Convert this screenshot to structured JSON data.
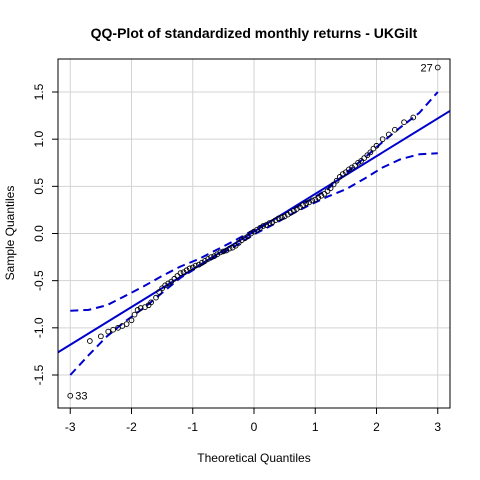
{
  "chart_data": {
    "type": "scatter",
    "title": "QQ-Plot of standardized monthly returns - UKGilt",
    "xlabel": "Theoretical Quantiles",
    "ylabel": "Sample Quantiles",
    "xlim": [
      -3.2,
      3.2
    ],
    "ylim": [
      -1.85,
      1.85
    ],
    "xticks": [
      -3,
      -2,
      -1,
      0,
      1,
      2,
      3
    ],
    "yticks": [
      -1.5,
      -1.0,
      -0.5,
      0.0,
      0.5,
      1.0,
      1.5
    ],
    "xtick_labels": [
      "-3",
      "-2",
      "-1",
      "0",
      "1",
      "2",
      "3"
    ],
    "ytick_labels": [
      "-1.5",
      "-1.0",
      "-0.5",
      "0.0",
      "0.5",
      "1.0",
      "1.5"
    ],
    "grid": true,
    "colors": {
      "points": "#000000",
      "reference_line": "#0000cc",
      "envelope": "#0000cc",
      "grid": "#d3d3d3"
    },
    "reference_line": {
      "intercept": 0.02,
      "slope": 0.4
    },
    "envelope": {
      "x": [
        -3.0,
        -2.7,
        -2.4,
        -2.1,
        -1.8,
        -1.5,
        -1.2,
        -0.9,
        -0.6,
        -0.3,
        0.0,
        0.3,
        0.6,
        0.9,
        1.2,
        1.5,
        1.8,
        2.1,
        2.4,
        2.7,
        3.0
      ],
      "upper": [
        -0.82,
        -0.81,
        -0.76,
        -0.66,
        -0.56,
        -0.45,
        -0.35,
        -0.27,
        -0.17,
        -0.07,
        0.04,
        0.14,
        0.25,
        0.35,
        0.47,
        0.64,
        0.8,
        0.97,
        1.13,
        1.28,
        1.5
      ],
      "lower": [
        -1.5,
        -1.29,
        -1.09,
        -0.93,
        -0.79,
        -0.63,
        -0.47,
        -0.35,
        -0.24,
        -0.13,
        -0.01,
        0.09,
        0.2,
        0.3,
        0.39,
        0.47,
        0.58,
        0.7,
        0.79,
        0.84,
        0.85
      ]
    },
    "points": {
      "x": [
        -3.0,
        -2.68,
        -2.5,
        -2.38,
        -2.3,
        -2.22,
        -2.15,
        -2.08,
        -2.0,
        -1.95,
        -1.9,
        -1.85,
        -1.78,
        -1.72,
        -1.68,
        -1.6,
        -1.55,
        -1.5,
        -1.45,
        -1.4,
        -1.35,
        -1.3,
        -1.25,
        -1.2,
        -1.15,
        -1.1,
        -1.05,
        -1.0,
        -0.95,
        -0.9,
        -0.85,
        -0.8,
        -0.75,
        -0.7,
        -0.65,
        -0.6,
        -0.55,
        -0.5,
        -0.45,
        -0.4,
        -0.35,
        -0.3,
        -0.25,
        -0.2,
        -0.15,
        -0.1,
        -0.05,
        0.0,
        0.05,
        0.1,
        0.15,
        0.2,
        0.25,
        0.3,
        0.35,
        0.4,
        0.45,
        0.5,
        0.55,
        0.6,
        0.65,
        0.7,
        0.75,
        0.8,
        0.85,
        0.9,
        0.95,
        1.0,
        1.05,
        1.1,
        1.15,
        1.2,
        1.25,
        1.3,
        1.35,
        1.4,
        1.45,
        1.5,
        1.55,
        1.6,
        1.65,
        1.7,
        1.75,
        1.8,
        1.85,
        1.9,
        1.95,
        2.0,
        2.1,
        2.2,
        2.3,
        2.45,
        2.6,
        3.0
      ],
      "y": [
        -1.72,
        -1.14,
        -1.09,
        -1.04,
        -1.02,
        -1.0,
        -0.98,
        -0.96,
        -0.92,
        -0.86,
        -0.81,
        -0.79,
        -0.78,
        -0.76,
        -0.73,
        -0.68,
        -0.62,
        -0.58,
        -0.55,
        -0.53,
        -0.51,
        -0.48,
        -0.45,
        -0.42,
        -0.41,
        -0.39,
        -0.37,
        -0.36,
        -0.34,
        -0.33,
        -0.31,
        -0.29,
        -0.27,
        -0.25,
        -0.24,
        -0.22,
        -0.2,
        -0.19,
        -0.18,
        -0.16,
        -0.15,
        -0.13,
        -0.1,
        -0.07,
        -0.05,
        -0.03,
        0.0,
        0.02,
        0.04,
        0.06,
        0.08,
        0.09,
        0.11,
        0.12,
        0.14,
        0.16,
        0.17,
        0.18,
        0.2,
        0.22,
        0.24,
        0.26,
        0.28,
        0.3,
        0.32,
        0.33,
        0.35,
        0.36,
        0.38,
        0.4,
        0.42,
        0.45,
        0.48,
        0.52,
        0.56,
        0.6,
        0.63,
        0.65,
        0.68,
        0.7,
        0.72,
        0.75,
        0.77,
        0.8,
        0.83,
        0.86,
        0.9,
        0.93,
        1.0,
        1.05,
        1.1,
        1.18,
        1.23,
        1.76
      ]
    },
    "point_labels": [
      {
        "text": "27",
        "x": 3.0,
        "y": 1.76
      },
      {
        "text": "33",
        "x": -3.0,
        "y": -1.72
      }
    ]
  }
}
